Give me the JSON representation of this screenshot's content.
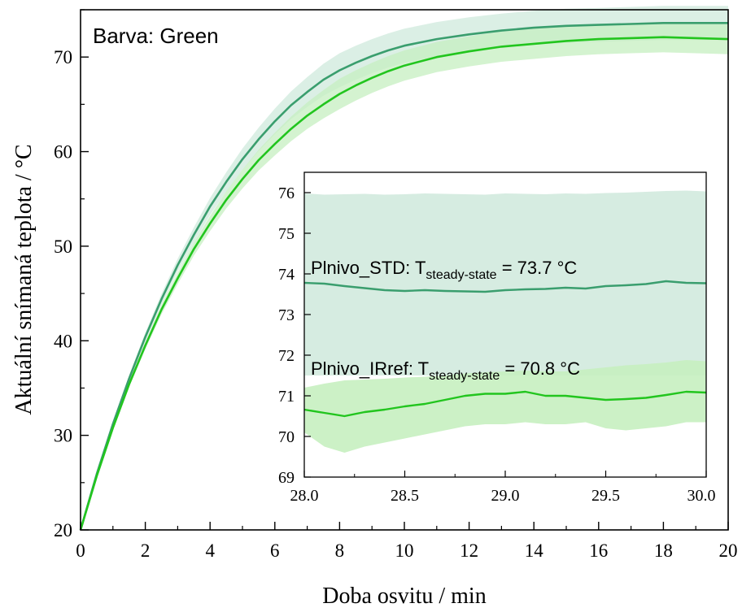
{
  "colors": {
    "std_line": "#3a9e6e",
    "std_band": "#cfe9dc",
    "irref_line": "#22c51e",
    "irref_band": "#c6efc0",
    "axis": "#000000",
    "background": "#ffffff"
  },
  "chart_data": [
    {
      "id": "main",
      "type": "line",
      "annotation": "Barva: Green",
      "xlabel": "Doba osvitu / min",
      "ylabel": "Aktuální snímaná teplota / °C",
      "xlim": [
        0,
        20
      ],
      "ylim": [
        20,
        75
      ],
      "xticks": [
        "0",
        "2",
        "4",
        "6",
        "8",
        "10",
        "12",
        "14",
        "16",
        "18",
        "20"
      ],
      "yticks": [
        "20",
        "30",
        "40",
        "50",
        "60",
        "70"
      ],
      "grid": false,
      "series": [
        {
          "key": "std",
          "x": [
            0,
            0.5,
            1,
            1.5,
            2,
            2.5,
            3,
            3.5,
            4,
            4.5,
            5,
            5.5,
            6,
            6.5,
            7,
            7.5,
            8,
            8.5,
            9,
            9.5,
            10,
            11,
            12,
            13,
            14,
            15,
            16,
            17,
            18,
            19,
            20
          ],
          "y": [
            20.0,
            25.9,
            31.2,
            36.0,
            40.4,
            44.4,
            48.0,
            51.2,
            54.2,
            56.8,
            59.2,
            61.3,
            63.2,
            64.9,
            66.3,
            67.6,
            68.6,
            69.4,
            70.1,
            70.7,
            71.2,
            71.9,
            72.4,
            72.8,
            73.1,
            73.3,
            73.4,
            73.5,
            73.6,
            73.6,
            73.6
          ],
          "band": 1.8
        },
        {
          "key": "irref",
          "x": [
            0,
            0.5,
            1,
            1.5,
            2,
            2.5,
            3,
            3.5,
            4,
            4.5,
            5,
            5.5,
            6,
            6.5,
            7,
            7.5,
            8,
            8.5,
            9,
            9.5,
            10,
            11,
            12,
            13,
            14,
            15,
            16,
            17,
            18,
            19,
            20
          ],
          "y": [
            20.0,
            25.7,
            30.8,
            35.4,
            39.5,
            43.3,
            46.6,
            49.7,
            52.4,
            54.9,
            57.1,
            59.1,
            60.8,
            62.4,
            63.8,
            65.0,
            66.1,
            67.0,
            67.8,
            68.5,
            69.1,
            70.0,
            70.6,
            71.1,
            71.4,
            71.7,
            71.9,
            72.0,
            72.1,
            72.0,
            71.9
          ],
          "band": 1.6
        }
      ]
    },
    {
      "id": "inset",
      "type": "line",
      "xlim": [
        28.0,
        30.0
      ],
      "ylim": [
        69,
        76.5
      ],
      "xticks": [
        "28.0",
        "28.5",
        "29.0",
        "29.5",
        "30.0"
      ],
      "yticks": [
        "69",
        "70",
        "71",
        "72",
        "73",
        "74",
        "75",
        "76"
      ],
      "grid": false,
      "annotations": [
        {
          "key": "std",
          "text_main": "Plnivo_STD: T",
          "text_sub": "steady-state",
          "text_end": " = 73.7 °C"
        },
        {
          "key": "irref",
          "text_main": "Plnivo_IRref: T",
          "text_sub": "steady-state",
          "text_end": " = 70.8 °C"
        }
      ],
      "series": [
        {
          "key": "std",
          "x": [
            28.0,
            28.1,
            28.2,
            28.3,
            28.4,
            28.5,
            28.6,
            28.7,
            28.8,
            28.9,
            29.0,
            29.1,
            29.2,
            29.3,
            29.4,
            29.5,
            29.6,
            29.7,
            29.8,
            29.9,
            30.0
          ],
          "y": [
            73.78,
            73.76,
            73.7,
            73.65,
            73.6,
            73.58,
            73.6,
            73.58,
            73.57,
            73.56,
            73.6,
            73.62,
            73.63,
            73.66,
            73.64,
            73.7,
            73.72,
            73.75,
            73.82,
            73.78,
            73.77
          ],
          "lower": [
            71.5,
            71.5,
            71.5,
            71.5,
            71.5,
            71.5,
            71.5,
            71.5,
            71.5,
            71.5,
            71.5,
            71.5,
            71.5,
            71.5,
            71.5,
            71.5,
            71.5,
            71.5,
            71.5,
            71.5,
            71.5
          ],
          "upper": [
            75.98,
            75.95,
            75.96,
            75.97,
            75.95,
            75.96,
            75.98,
            75.97,
            75.96,
            75.95,
            75.98,
            75.97,
            75.96,
            75.98,
            75.97,
            75.99,
            76.0,
            76.02,
            76.04,
            76.05,
            76.03
          ]
        },
        {
          "key": "irref",
          "x": [
            28.0,
            28.1,
            28.2,
            28.3,
            28.4,
            28.5,
            28.6,
            28.7,
            28.8,
            28.9,
            29.0,
            29.1,
            29.2,
            29.3,
            29.4,
            29.5,
            29.6,
            29.7,
            29.8,
            29.9,
            30.0
          ],
          "y": [
            70.66,
            70.58,
            70.5,
            70.6,
            70.66,
            70.74,
            70.8,
            70.9,
            71.0,
            71.05,
            71.05,
            71.1,
            71.0,
            71.0,
            70.95,
            70.9,
            70.92,
            70.95,
            71.02,
            71.1,
            71.08
          ],
          "lower": [
            70.1,
            69.75,
            69.6,
            69.75,
            69.85,
            69.95,
            70.05,
            70.15,
            70.25,
            70.3,
            70.3,
            70.35,
            70.3,
            70.3,
            70.35,
            70.2,
            70.15,
            70.2,
            70.25,
            70.35,
            70.35
          ],
          "upper": [
            71.2,
            71.3,
            71.38,
            71.4,
            71.42,
            71.45,
            71.47,
            71.5,
            71.55,
            71.58,
            71.6,
            71.62,
            71.6,
            71.6,
            71.65,
            71.7,
            71.75,
            71.78,
            71.82,
            71.88,
            71.85
          ]
        }
      ]
    }
  ]
}
